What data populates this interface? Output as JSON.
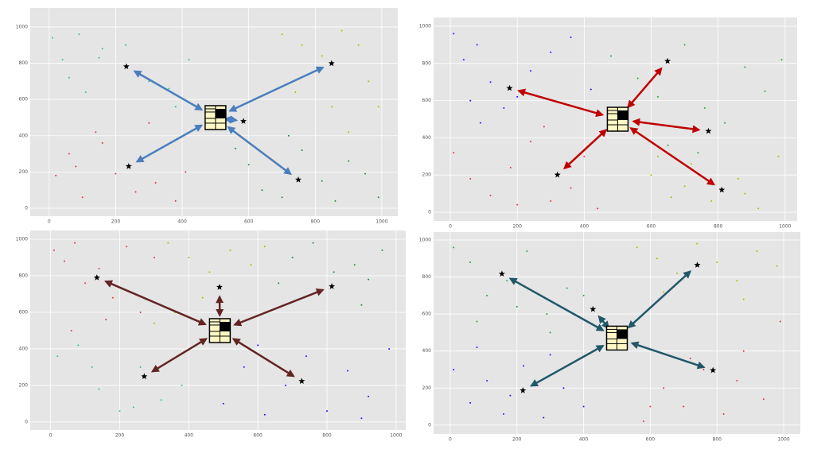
{
  "chart_data": [
    {
      "type": "scatter",
      "arrow_color": "#4a7ebf",
      "center": {
        "x": 500,
        "y": 500
      },
      "xlim": [
        -57,
        1048
      ],
      "ylim": [
        -44,
        1105
      ],
      "xticks": [
        0,
        200,
        400,
        600,
        800,
        1000
      ],
      "yticks": [
        0,
        200,
        400,
        600,
        800,
        1000
      ],
      "grid": true,
      "stars": {
        "x": [
          232,
          849,
          584,
          239,
          749
        ],
        "y": [
          782,
          799,
          480,
          231,
          157
        ]
      },
      "series": [
        {
          "color": "#2fc28a",
          "x": [
            10,
            40,
            90,
            150,
            160,
            230,
            300,
            360,
            420,
            380,
            110,
            60
          ],
          "y": [
            940,
            820,
            960,
            830,
            880,
            900,
            700,
            660,
            820,
            560,
            640,
            720
          ]
        },
        {
          "color": "#b8b800",
          "x": [
            700,
            760,
            820,
            880,
            930,
            960,
            990,
            740,
            640,
            900,
            850
          ],
          "y": [
            960,
            900,
            840,
            980,
            900,
            700,
            560,
            640,
            620,
            420,
            560
          ]
        },
        {
          "color": "#e03a3a",
          "x": [
            20,
            60,
            100,
            160,
            200,
            260,
            320,
            380,
            410,
            140,
            80,
            300
          ],
          "y": [
            180,
            300,
            60,
            360,
            190,
            90,
            140,
            40,
            200,
            420,
            230,
            470
          ]
        },
        {
          "color": "#1f8f2f",
          "x": [
            600,
            640,
            700,
            760,
            820,
            860,
            900,
            950,
            990,
            720,
            560
          ],
          "y": [
            240,
            100,
            60,
            320,
            150,
            40,
            260,
            190,
            60,
            400,
            330
          ]
        }
      ]
    },
    {
      "type": "scatter",
      "arrow_color": "#c00000",
      "center": {
        "x": 500,
        "y": 500
      },
      "xlim": [
        -50,
        1036
      ],
      "ylim": [
        -47,
        1047
      ],
      "xticks": [
        0,
        200,
        400,
        600,
        800,
        1000
      ],
      "yticks": [
        0,
        200,
        400,
        600,
        800,
        1000
      ],
      "grid": true,
      "stars": {
        "x": [
          177,
          649,
          771,
          320,
          811
        ],
        "y": [
          667,
          812,
          436,
          201,
          120
        ]
      },
      "series": [
        {
          "color": "#1a1aff",
          "x": [
            10,
            40,
            80,
            120,
            160,
            200,
            240,
            300,
            360,
            420,
            90,
            60
          ],
          "y": [
            960,
            820,
            900,
            700,
            560,
            620,
            760,
            860,
            940,
            660,
            480,
            600
          ]
        },
        {
          "color": "#23a83a",
          "x": [
            480,
            560,
            620,
            700,
            760,
            820,
            880,
            940,
            990,
            650,
            740
          ],
          "y": [
            840,
            720,
            620,
            900,
            560,
            480,
            780,
            650,
            820,
            360,
            320
          ]
        },
        {
          "color": "#e03a3a",
          "x": [
            10,
            60,
            120,
            180,
            240,
            300,
            360,
            400,
            440,
            280,
            200
          ],
          "y": [
            320,
            180,
            90,
            240,
            380,
            60,
            130,
            300,
            20,
            460,
            40
          ]
        },
        {
          "color": "#b8b800",
          "x": [
            600,
            660,
            720,
            780,
            860,
            920,
            980,
            700,
            880,
            620
          ],
          "y": [
            200,
            80,
            260,
            60,
            180,
            20,
            300,
            140,
            100,
            300
          ]
        }
      ]
    },
    {
      "type": "scatter",
      "arrow_color": "#632523",
      "center": {
        "x": 490,
        "y": 500
      },
      "xlim": [
        -59,
        1028
      ],
      "ylim": [
        -44,
        1048
      ],
      "xticks": [
        0,
        200,
        400,
        600,
        800,
        1000
      ],
      "yticks": [
        0,
        200,
        400,
        600,
        800,
        1000
      ],
      "grid": true,
      "stars": {
        "x": [
          134,
          489,
          814,
          271,
          727
        ],
        "y": [
          790,
          738,
          742,
          249,
          223
        ]
      },
      "series": [
        {
          "color": "#e03a3a",
          "x": [
            10,
            40,
            70,
            100,
            140,
            180,
            220,
            260,
            300,
            60,
            160
          ],
          "y": [
            940,
            880,
            980,
            760,
            840,
            680,
            960,
            600,
            900,
            500,
            560
          ]
        },
        {
          "color": "#b8b800",
          "x": [
            340,
            400,
            460,
            520,
            580,
            620,
            360,
            440,
            300
          ],
          "y": [
            980,
            900,
            820,
            940,
            860,
            960,
            600,
            680,
            540
          ]
        },
        {
          "color": "#1f8f2f",
          "x": [
            700,
            760,
            820,
            880,
            920,
            960,
            660,
            900
          ],
          "y": [
            900,
            980,
            820,
            860,
            780,
            940,
            760,
            640
          ]
        },
        {
          "color": "#2fc28a",
          "x": [
            20,
            80,
            140,
            200,
            260,
            320,
            380,
            120,
            240
          ],
          "y": [
            360,
            420,
            180,
            60,
            300,
            120,
            200,
            300,
            80
          ]
        },
        {
          "color": "#1a1aff",
          "x": [
            500,
            560,
            620,
            680,
            740,
            800,
            860,
            920,
            980,
            600,
            900
          ],
          "y": [
            100,
            300,
            40,
            200,
            360,
            60,
            280,
            140,
            400,
            420,
            20
          ]
        }
      ]
    },
    {
      "type": "scatter",
      "arrow_color": "#215868",
      "center": {
        "x": 500,
        "y": 470
      },
      "xlim": [
        -50,
        1050
      ],
      "ylim": [
        -48,
        1043
      ],
      "xticks": [
        0,
        200,
        400,
        600,
        800,
        1000
      ],
      "yticks": [
        0,
        200,
        400,
        600,
        800,
        1000
      ],
      "grid": true,
      "stars": {
        "x": [
          155,
          428,
          741,
          788,
          218
        ],
        "y": [
          817,
          626,
          865,
          296,
          187
        ]
      },
      "series": [
        {
          "color": "#23a83a",
          "x": [
            10,
            60,
            110,
            170,
            230,
            290,
            350,
            400,
            80,
            300,
            200
          ],
          "y": [
            960,
            880,
            700,
            780,
            940,
            600,
            740,
            700,
            560,
            500,
            640
          ]
        },
        {
          "color": "#b8b800",
          "x": [
            560,
            620,
            680,
            740,
            800,
            860,
            920,
            980,
            640,
            880
          ],
          "y": [
            960,
            900,
            820,
            980,
            880,
            780,
            940,
            860,
            720,
            680
          ]
        },
        {
          "color": "#1a1aff",
          "x": [
            10,
            60,
            110,
            160,
            220,
            280,
            340,
            400,
            80,
            300,
            180
          ],
          "y": [
            300,
            120,
            240,
            60,
            320,
            40,
            200,
            100,
            420,
            380,
            160
          ]
        },
        {
          "color": "#e03a3a",
          "x": [
            580,
            640,
            700,
            760,
            820,
            880,
            940,
            990,
            860,
            720,
            600
          ],
          "y": [
            20,
            200,
            100,
            300,
            60,
            400,
            140,
            560,
            240,
            360,
            100
          ]
        }
      ]
    }
  ]
}
